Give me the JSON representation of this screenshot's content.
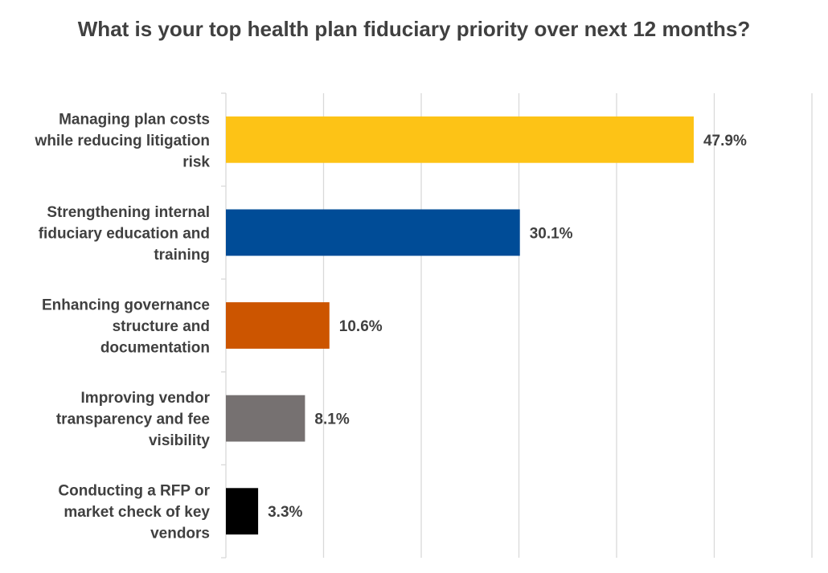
{
  "chart_data": {
    "type": "bar",
    "orientation": "horizontal",
    "title": "What is your top health plan fiduciary priority over next 12 months?",
    "xlabel": "",
    "ylabel": "",
    "xlim": [
      0,
      60
    ],
    "grid": true,
    "gridline_step": 10,
    "legend": "none",
    "categories": [
      "Managing plan costs while reducing litigation risk",
      "Strengthening internal fiduciary education and training",
      "Enhancing governance structure and documentation",
      "Improving vendor transparency and fee visibility",
      "Conducting a RFP or market check of key vendors"
    ],
    "category_lines": [
      [
        "Managing plan costs",
        "while reducing litigation",
        "risk"
      ],
      [
        "Strengthening internal",
        "fiduciary education and",
        "training"
      ],
      [
        "Enhancing governance",
        "structure and",
        "documentation"
      ],
      [
        "Improving vendor",
        "transparency and fee",
        "visibility"
      ],
      [
        "Conducting a RFP or",
        "market check of key",
        "vendors"
      ]
    ],
    "values": [
      47.9,
      30.1,
      10.6,
      8.1,
      3.3
    ],
    "data_labels": [
      "47.9%",
      "30.1%",
      "10.6%",
      "8.1%",
      "3.3%"
    ],
    "colors": [
      "#FDC316",
      "#004C97",
      "#CC5500",
      "#767171",
      "#000000"
    ],
    "gridline_color": "#D9D9D9"
  }
}
